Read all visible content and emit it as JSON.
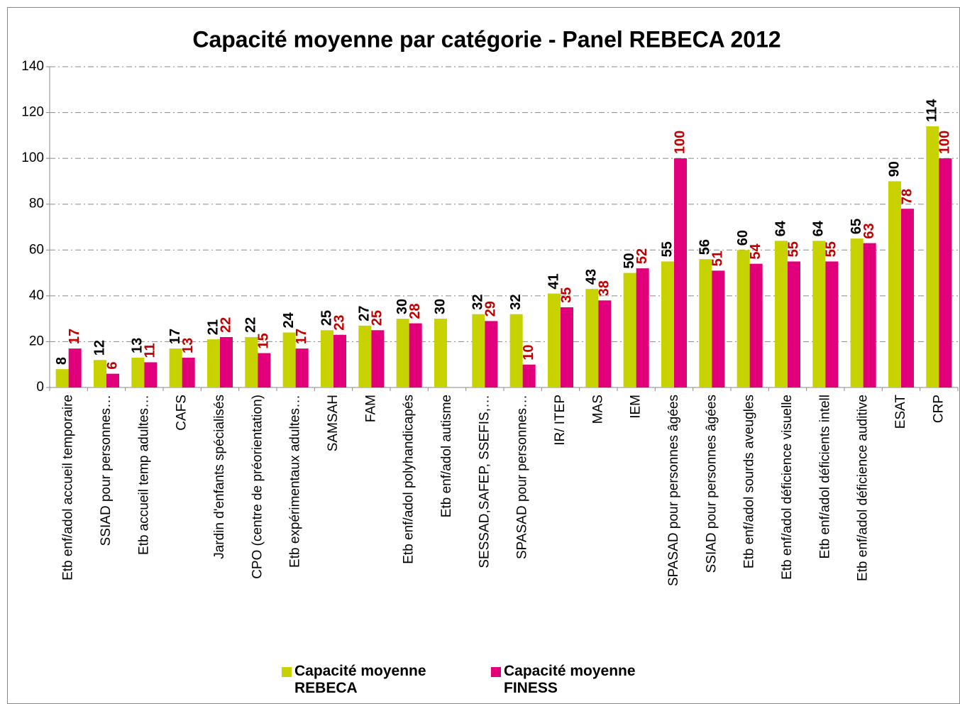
{
  "chart_data": {
    "type": "bar",
    "title": "Capacité moyenne par catégorie - Panel REBECA 2012",
    "categories": [
      "Etb enf/adol  accueil temporaire",
      "SSIAD pour personnes…",
      "Etb accueil temp  adultes…",
      "CAFS",
      "Jardin d'enfants spécialisés",
      "CPO (centre de préorientation)",
      "Etb expérimentaux adultes…",
      "SAMSAH",
      "FAM",
      "Etb enf/adol  polyhandicapés",
      "Etb enf/adol  autisme",
      "SESSAD,SAFEP, SSEFIS,…",
      "SPASAD pour personnes…",
      "IR/ ITEP",
      "MAS",
      "IEM",
      "SPASAD pour personnes âgées",
      "SSIAD pour personnes âgées",
      "Etb enf/adol  sourds aveugles",
      "Etb enf/adol  déficience visuelle",
      "Etb enf/adol  déficients intell",
      "Etb enf/adol  déficience auditive",
      "ESAT",
      "CRP"
    ],
    "series": [
      {
        "name": "Capacité moyenne REBECA",
        "color": "#c8d200",
        "label_color": "#000000",
        "values": [
          8,
          12,
          13,
          17,
          21,
          22,
          24,
          25,
          27,
          30,
          30,
          32,
          32,
          41,
          43,
          50,
          55,
          56,
          60,
          64,
          64,
          65,
          90,
          114
        ]
      },
      {
        "name": "Capacité moyenne FINESS",
        "color": "#e2007a",
        "label_color": "#c00000",
        "values": [
          17,
          6,
          11,
          13,
          22,
          15,
          17,
          23,
          25,
          28,
          null,
          29,
          10,
          35,
          38,
          52,
          100,
          51,
          54,
          55,
          55,
          63,
          78,
          100
        ]
      }
    ],
    "ylim": [
      0,
      140
    ],
    "yticks": [
      0,
      20,
      40,
      60,
      80,
      100,
      120,
      140
    ],
    "grid": true
  }
}
